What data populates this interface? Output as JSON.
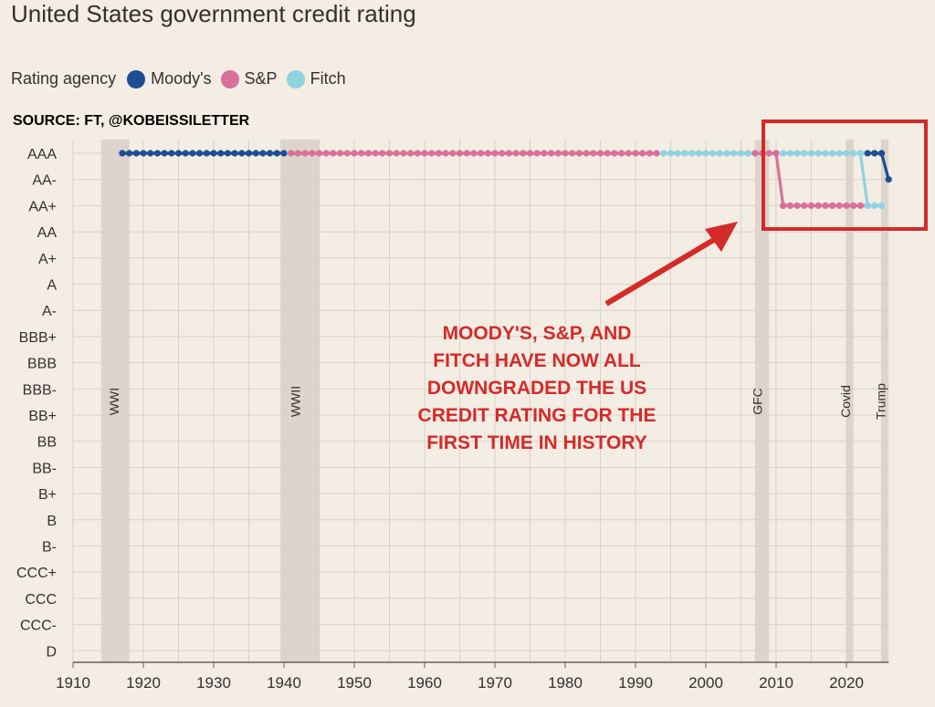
{
  "title": "United States government credit rating",
  "legend": {
    "title": "Rating agency",
    "items": [
      {
        "label": "Moody's",
        "color": "#1c4e94"
      },
      {
        "label": "S&P",
        "color": "#d9709a"
      },
      {
        "label": "Fitch",
        "color": "#8fd3e0"
      }
    ]
  },
  "source": "SOURCE: FT, @KOBEISSILETTER",
  "annotation_lines": [
    "MOODY'S, S&P, AND",
    "FITCH HAVE NOW ALL",
    "DOWNGRADED THE US",
    "CREDIT RATING FOR THE",
    "FIRST TIME IN HISTORY"
  ],
  "colors": {
    "annotation": "#d42a2a",
    "shade": "#ddd5cc",
    "grid": "#d8d1c7"
  },
  "chart_data": {
    "type": "line",
    "title": "United States government credit rating",
    "xlim": [
      1910,
      2026
    ],
    "x_ticks": [
      1910,
      1920,
      1930,
      1940,
      1950,
      1960,
      1970,
      1980,
      1990,
      2000,
      2010,
      2020
    ],
    "y_categories": [
      "AAA",
      "AA-",
      "AA+",
      "AA",
      "A+",
      "A",
      "A-",
      "BBB+",
      "BBB",
      "BBB-",
      "BB+",
      "BB",
      "BB-",
      "B+",
      "B",
      "B-",
      "CCC+",
      "CCC",
      "CCC-",
      "D"
    ],
    "shaded_periods": [
      {
        "label": "WWI",
        "start": 1914,
        "end": 1918
      },
      {
        "label": "WWII",
        "start": 1939.5,
        "end": 1945
      },
      {
        "label": "GFC",
        "start": 2007,
        "end": 2009
      },
      {
        "label": "Covid",
        "start": 2020,
        "end": 2021
      },
      {
        "label": "Trump",
        "start": 2025,
        "end": 2026
      }
    ],
    "series": [
      {
        "name": "Moody's",
        "color": "#1c4e94",
        "start": 1917,
        "points": [
          [
            1917,
            "AAA"
          ],
          [
            1940,
            "AAA"
          ]
        ]
      },
      {
        "name": "S&P",
        "color": "#d9709a",
        "start": 1941,
        "points": [
          [
            1941,
            "AAA"
          ],
          [
            1993,
            "AAA"
          ]
        ]
      },
      {
        "name": "Fitch",
        "color": "#8fd3e0",
        "start": 1994,
        "points": [
          [
            1994,
            "AAA"
          ],
          [
            2007,
            "AAA"
          ]
        ]
      },
      {
        "name": "S&P",
        "color": "#d9709a",
        "start": 2007,
        "points": [
          [
            2007,
            "AAA"
          ],
          [
            2010,
            "AAA"
          ],
          [
            2011,
            "AA+"
          ],
          [
            2023,
            "AA+"
          ]
        ]
      },
      {
        "name": "Fitch",
        "color": "#8fd3e0",
        "start": 2011,
        "points": [
          [
            2011,
            "AAA"
          ],
          [
            2022,
            "AAA"
          ],
          [
            2023,
            "AA+"
          ],
          [
            2025,
            "AA+"
          ]
        ]
      },
      {
        "name": "Moody's",
        "color": "#1c4e94",
        "start": 2023,
        "points": [
          [
            2023,
            "AAA"
          ],
          [
            2025,
            "AAA"
          ],
          [
            2026,
            "AA-"
          ]
        ]
      }
    ]
  }
}
